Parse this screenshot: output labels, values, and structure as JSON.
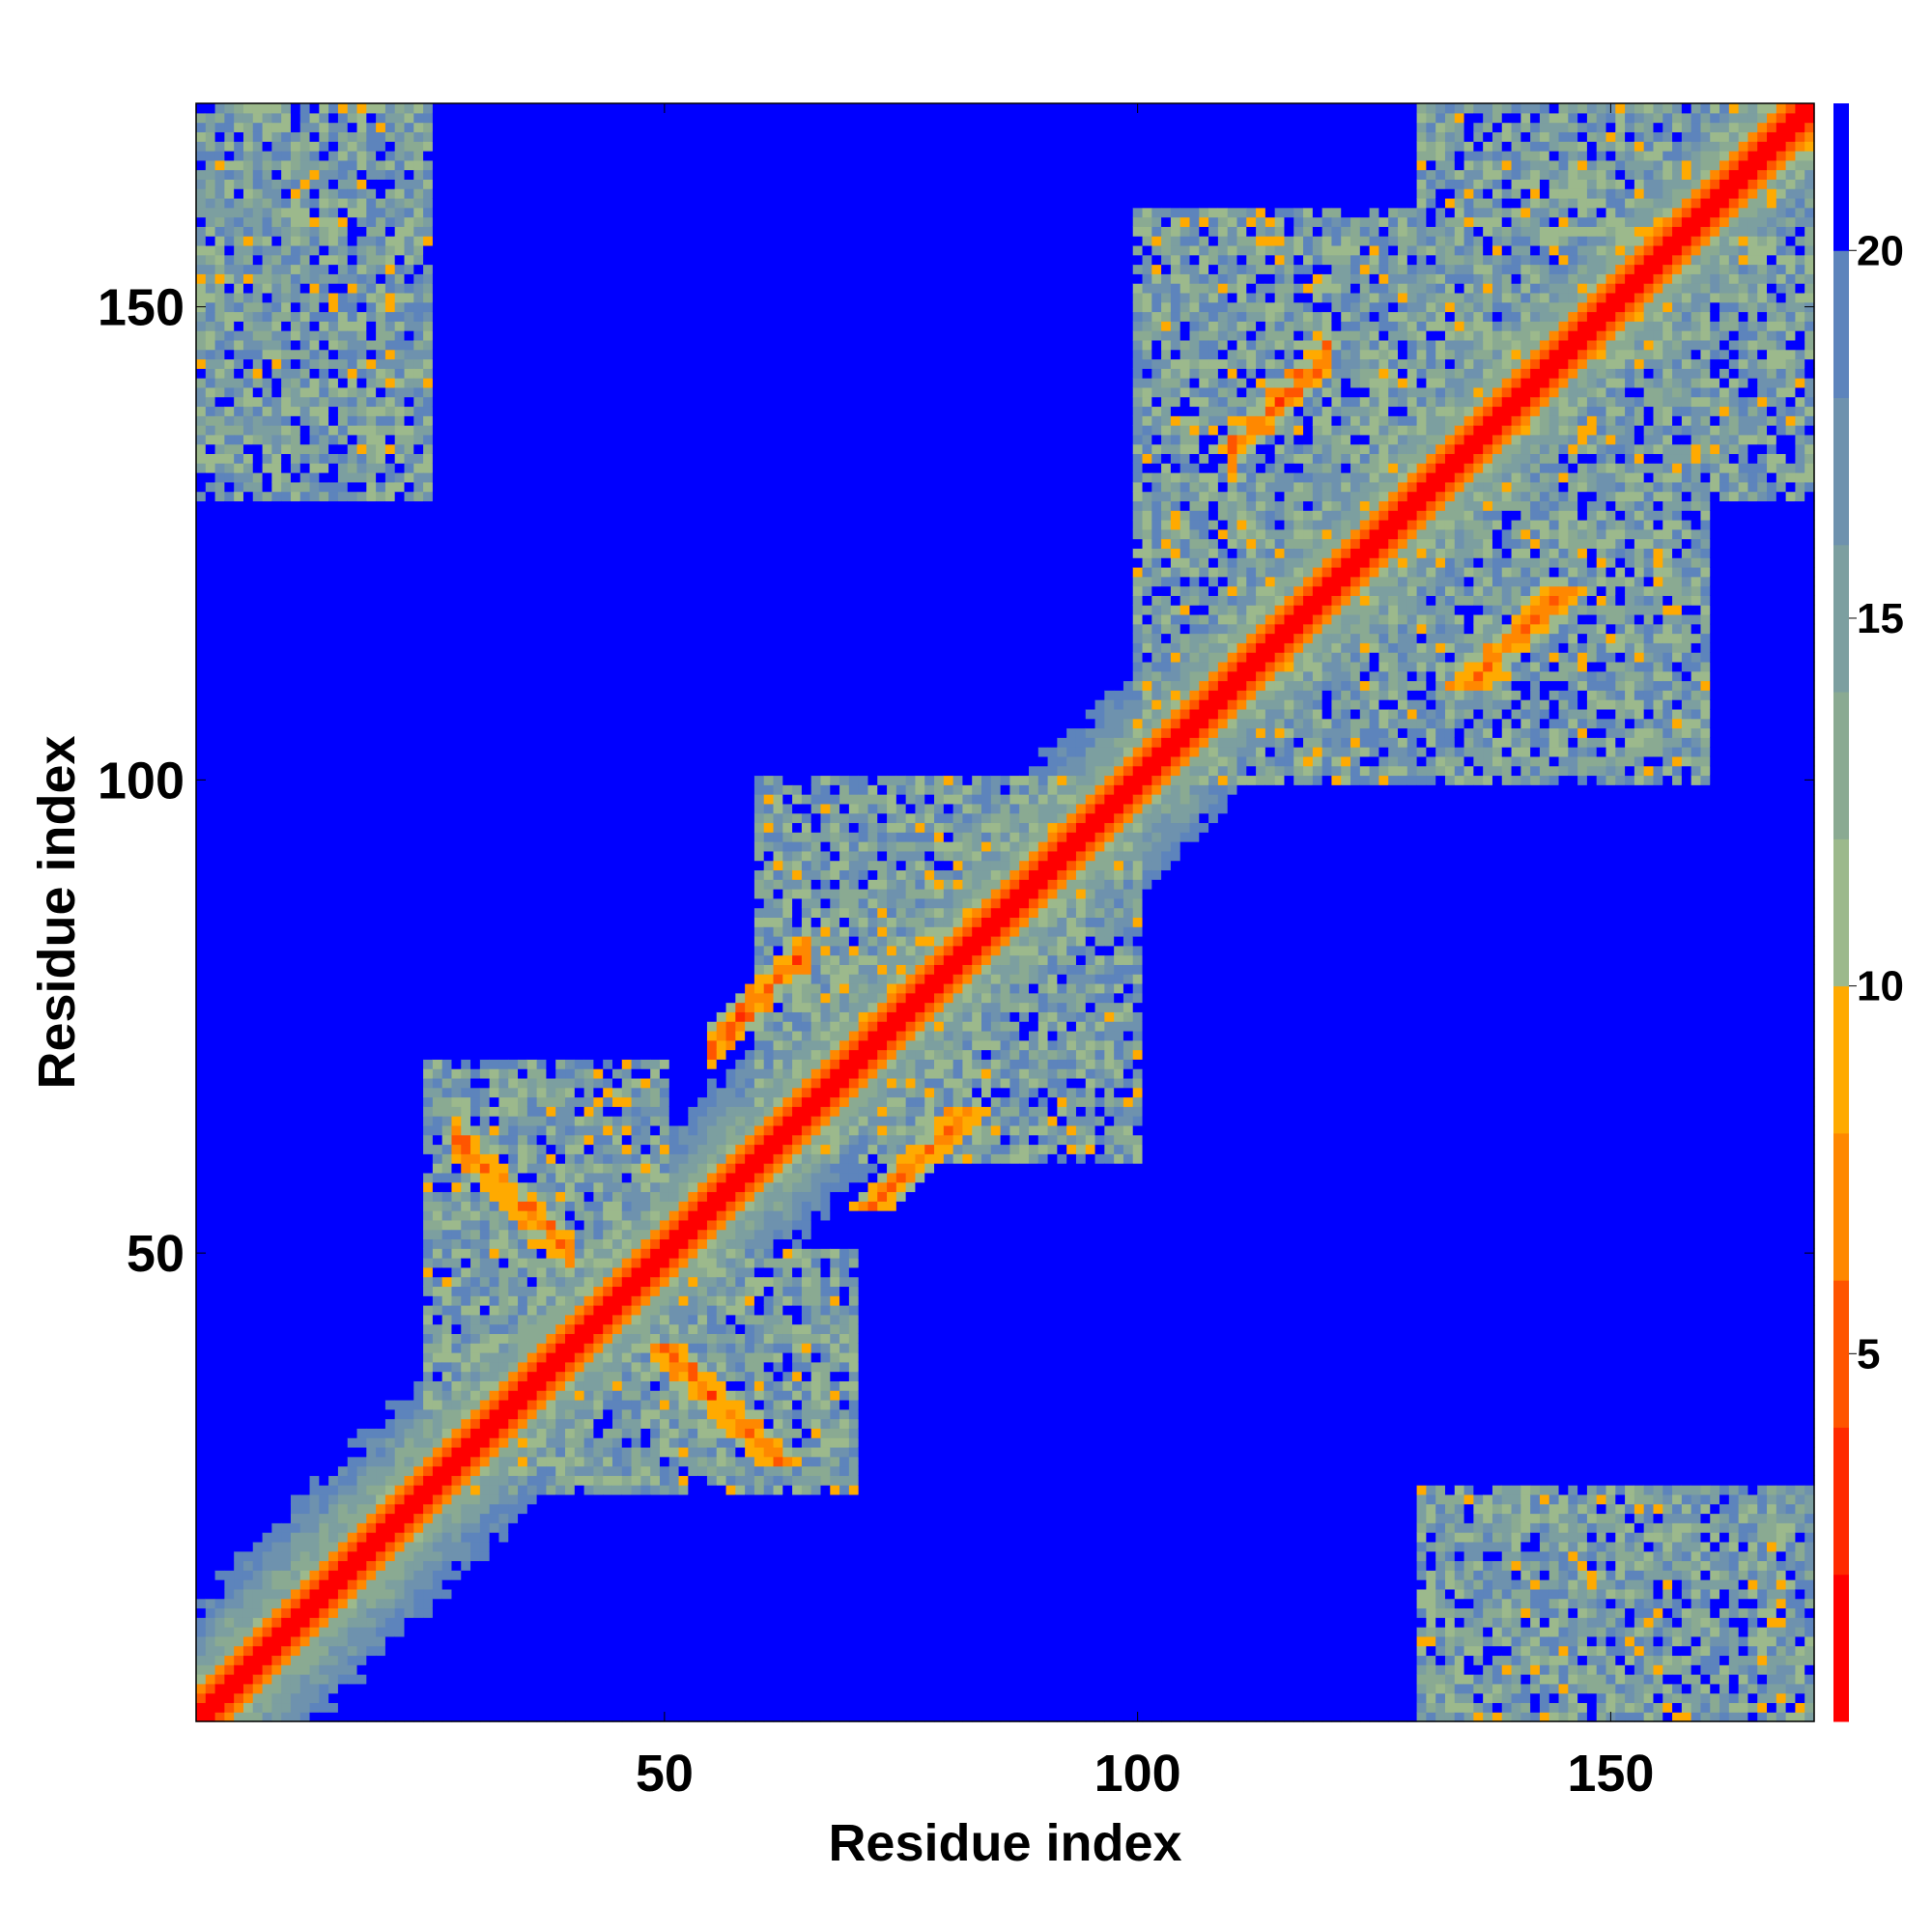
{
  "chart_data": {
    "type": "heatmap",
    "title": "",
    "xlabel": "Residue index",
    "ylabel": "Residue index",
    "n_residues": 171,
    "xlim": [
      1,
      171
    ],
    "ylim": [
      1,
      171
    ],
    "x_ticks": [
      50,
      100,
      150
    ],
    "y_ticks": [
      50,
      100,
      150
    ],
    "x_tick_labels": [
      "50",
      "100",
      "150"
    ],
    "y_tick_labels": [
      "50",
      "100",
      "150"
    ],
    "colorbar": {
      "range": [
        0,
        22
      ],
      "ticks": [
        5,
        10,
        15,
        20
      ],
      "tick_labels": [
        "5",
        "10",
        "15",
        "20"
      ],
      "levels": [
        {
          "min": 0,
          "max": 2,
          "color": "#ff0000"
        },
        {
          "min": 2,
          "max": 4,
          "color": "#ff2a00"
        },
        {
          "min": 4,
          "max": 6,
          "color": "#ff5500"
        },
        {
          "min": 6,
          "max": 8,
          "color": "#ff8800"
        },
        {
          "min": 8,
          "max": 10,
          "color": "#ffaa00"
        },
        {
          "min": 10,
          "max": 12,
          "color": "#9cb98c"
        },
        {
          "min": 12,
          "max": 14,
          "color": "#8aaa92"
        },
        {
          "min": 14,
          "max": 16,
          "color": "#7c9fa0"
        },
        {
          "min": 16,
          "max": 18,
          "color": "#6e92ae"
        },
        {
          "min": 18,
          "max": 20,
          "color": "#5d84bc"
        },
        {
          "min": 20,
          "max": 22,
          "color": "#0000ff"
        }
      ]
    },
    "contact_features": [
      {
        "type": "diagonal_band",
        "description": "near-diagonal distances below 6"
      },
      {
        "type": "contact_block",
        "i": [
          25,
          50
        ],
        "j": [
          30,
          70
        ],
        "strength": "medium"
      },
      {
        "type": "contact_block",
        "i": [
          60,
          100
        ],
        "j": [
          65,
          100
        ],
        "strength": "medium"
      },
      {
        "type": "contact_block",
        "i": [
          100,
          140
        ],
        "j": [
          105,
          160
        ],
        "strength": "medium"
      },
      {
        "type": "contact_block",
        "i": [
          130,
          171
        ],
        "j": [
          140,
          171
        ],
        "strength": "medium"
      },
      {
        "type": "contact_block",
        "i": [
          1,
          25
        ],
        "j": [
          130,
          171
        ],
        "strength": "medium"
      },
      {
        "type": "antiparallel_strand",
        "i": [
          28,
          40
        ],
        "j": [
          62,
          50
        ],
        "strength": "strong"
      },
      {
        "type": "parallel_strand",
        "i": [
          110,
          120
        ],
        "j": [
          135,
          145
        ],
        "strength": "strong"
      },
      {
        "type": "parallel_strand",
        "i": [
          55,
          65
        ],
        "j": [
          72,
          82
        ],
        "strength": "strong"
      }
    ]
  }
}
